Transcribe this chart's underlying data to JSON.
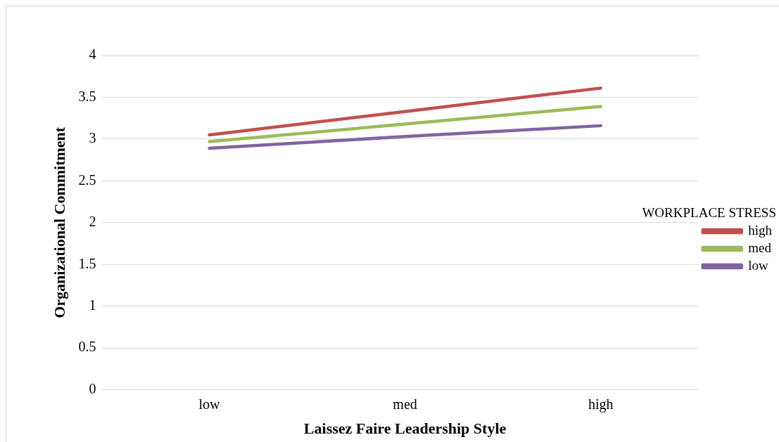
{
  "chart_data": {
    "type": "line",
    "xlabel": "Laissez Faire Leadership Style",
    "ylabel": "Organizational Commitment",
    "legend_title": "WORKPLACE STRESS",
    "categories": [
      "low",
      "med",
      "high"
    ],
    "series": [
      {
        "name": "high",
        "color": "#c0504d",
        "values": [
          3.05,
          3.33,
          3.61
        ]
      },
      {
        "name": "med",
        "color": "#9bbb59",
        "values": [
          2.97,
          3.18,
          3.39
        ]
      },
      {
        "name": "low",
        "color": "#8064a2",
        "values": [
          2.89,
          3.03,
          3.16
        ]
      }
    ],
    "ylim": [
      0,
      4
    ],
    "yticks": [
      0,
      0.5,
      1,
      1.5,
      2,
      2.5,
      3,
      3.5,
      4
    ],
    "grid": "y",
    "legend": "right",
    "marker": "none",
    "line_style": "solid"
  }
}
